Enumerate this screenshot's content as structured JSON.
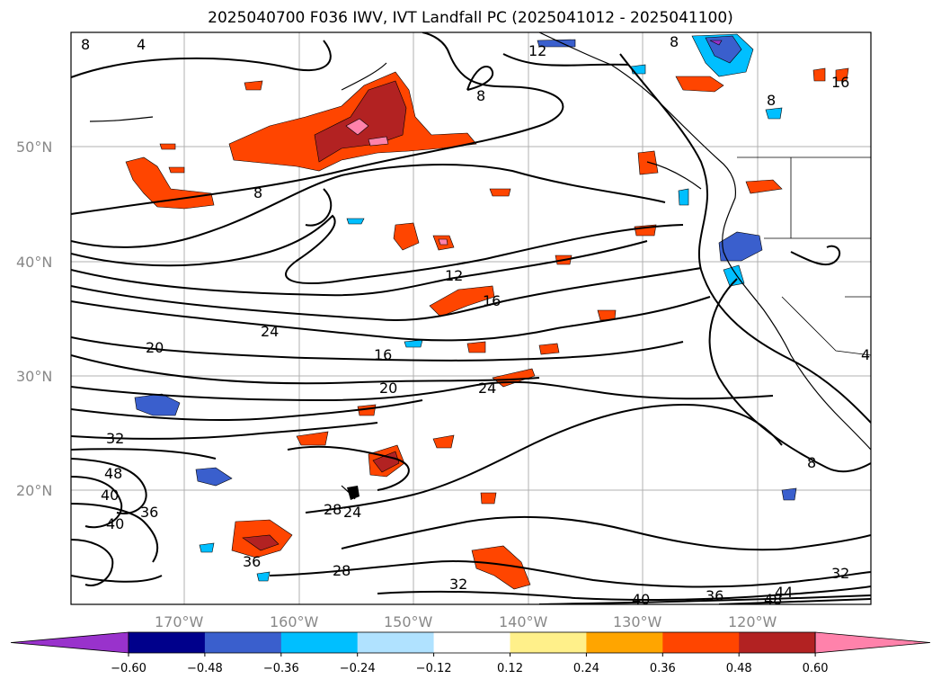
{
  "title": "2025040700 F036 IWV, IVT Landfall PC (2025041012 - 2025041100)",
  "map": {
    "lat_labels": [
      "50°N",
      "40°N",
      "30°N",
      "20°N"
    ],
    "lon_labels": [
      "170°W",
      "160°W",
      "150°W",
      "140°W",
      "130°W",
      "120°W"
    ],
    "contour_labels": [
      "8",
      "4",
      "12",
      "8",
      "8",
      "16",
      "12",
      "16",
      "24",
      "20",
      "16",
      "20",
      "24",
      "32",
      "48",
      "40",
      "36",
      "40",
      "28",
      "24",
      "36",
      "28",
      "32",
      "40",
      "36",
      "48",
      "44",
      "32",
      "8",
      "4",
      "8",
      "8"
    ]
  },
  "colorbar": {
    "ticks": [
      "−0.60",
      "−0.48",
      "−0.36",
      "−0.24",
      "−0.12",
      "0.12",
      "0.24",
      "0.36",
      "0.48",
      "0.60"
    ],
    "colors": [
      "#9932cc",
      "#00008b",
      "#3a5fcd",
      "#00bfff",
      "#b0e2ff",
      "#ffffff",
      "#fff08a",
      "#ffa500",
      "#ff4500",
      "#b22222",
      "#ff82ab"
    ]
  }
}
